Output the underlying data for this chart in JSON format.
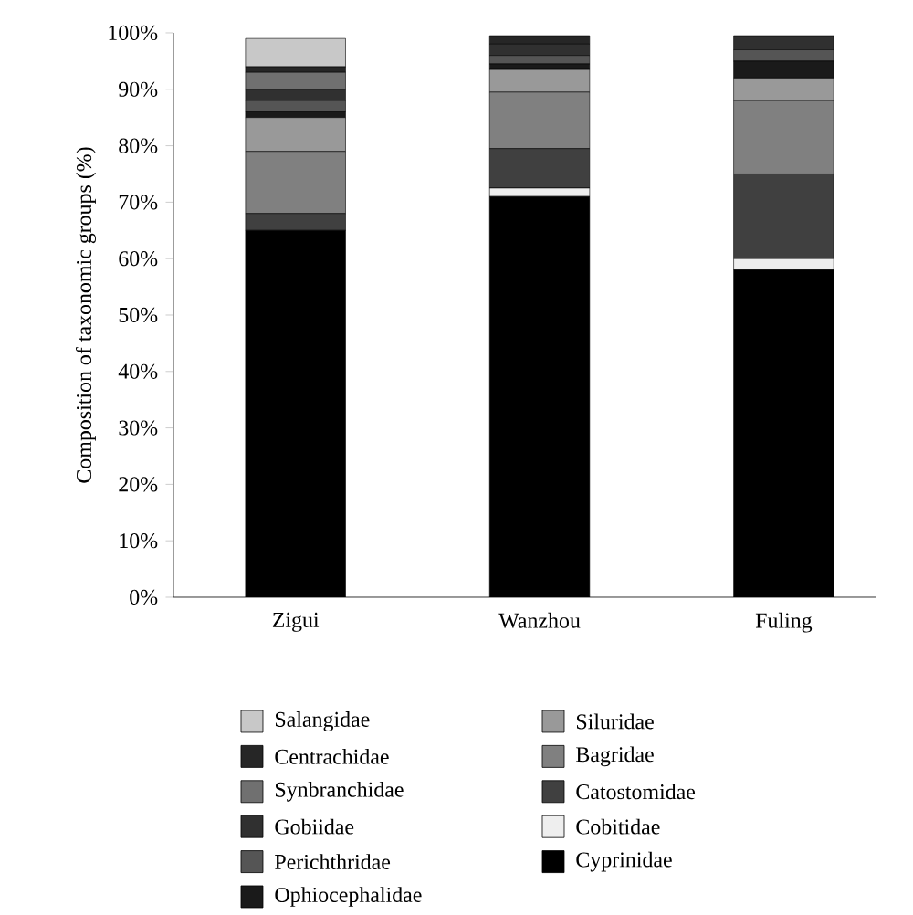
{
  "chart_data": {
    "type": "bar",
    "stacked": true,
    "ylabel": "Composition of taxonomic groups (%)",
    "categories": [
      "Zigui",
      "Wanzhou",
      "Fuling"
    ],
    "ylim": [
      0,
      100
    ],
    "yticks": [
      {
        "value": 0,
        "label": "0%"
      },
      {
        "value": 10,
        "label": "10%"
      },
      {
        "value": 20,
        "label": "20%"
      },
      {
        "value": 30,
        "label": "30%"
      },
      {
        "value": 40,
        "label": "40%"
      },
      {
        "value": 50,
        "label": "50%"
      },
      {
        "value": 60,
        "label": "60%"
      },
      {
        "value": 70,
        "label": "70%"
      },
      {
        "value": 80,
        "label": "80%"
      },
      {
        "value": 90,
        "label": "90%"
      },
      {
        "value": 100,
        "label": "100%"
      }
    ],
    "legend": "bottom",
    "series": [
      {
        "name": "Cyprinidae",
        "color": "#000000",
        "values": [
          65,
          71,
          58
        ]
      },
      {
        "name": "Cobitidae",
        "color": "#eeeeee",
        "values": [
          0,
          1.5,
          2
        ]
      },
      {
        "name": "Catostomidae",
        "color": "#404040",
        "values": [
          3,
          7,
          15
        ]
      },
      {
        "name": "Bagridae",
        "color": "#808080",
        "values": [
          11,
          10,
          13
        ]
      },
      {
        "name": "Siluridae",
        "color": "#999999",
        "values": [
          6,
          4,
          4
        ]
      },
      {
        "name": "Ophiocephalidae",
        "color": "#1a1a1a",
        "values": [
          1,
          1,
          3
        ]
      },
      {
        "name": "Perichthridae",
        "color": "#555555",
        "values": [
          2,
          1.5,
          2
        ]
      },
      {
        "name": "Gobiidae",
        "color": "#303030",
        "values": [
          2,
          2,
          2.5
        ]
      },
      {
        "name": "Synbranchidae",
        "color": "#707070",
        "values": [
          3,
          0,
          0
        ]
      },
      {
        "name": "Centrachidae",
        "color": "#262626",
        "values": [
          1,
          1.5,
          0
        ]
      },
      {
        "name": "Salangidae",
        "color": "#c8c8c8",
        "values": [
          5,
          0,
          0
        ]
      }
    ]
  }
}
